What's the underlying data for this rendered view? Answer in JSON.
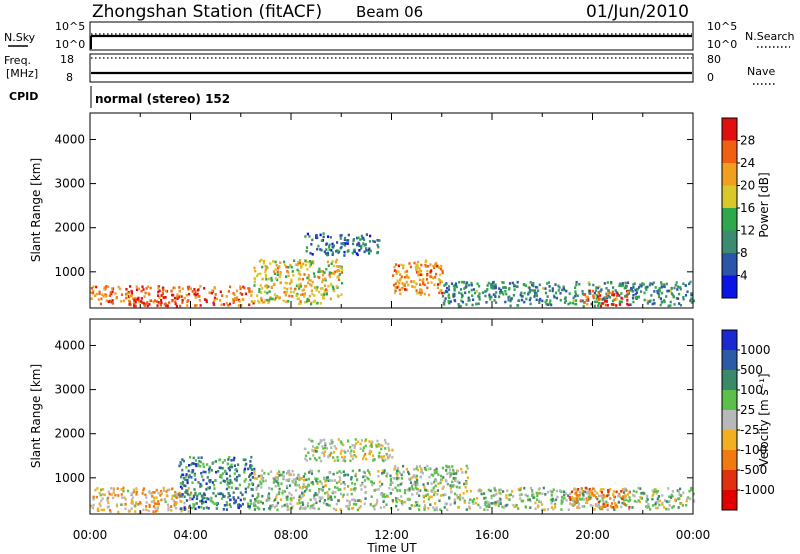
{
  "header": {
    "station": "Zhongshan Station (fitACF)",
    "beam": "Beam 06",
    "date": "01/Jun/2010"
  },
  "status_panels": {
    "nsky_label": "N.Sky",
    "nsky_ticks": [
      "10^5",
      "10^0"
    ],
    "nsearch_label": "N.Search",
    "nsearch_ticks": [
      "10^5",
      "10^0"
    ],
    "freq_label": "Freq.",
    "freq_unit": "[MHz]",
    "freq_ticks": [
      "18",
      "8"
    ],
    "nave_label": "Nave",
    "nave_ticks": [
      "80",
      "0"
    ],
    "cpid_label": "CPID",
    "cpid_text": "normal (stereo) 152"
  },
  "axes": {
    "ylabel": "Slant Range [km]",
    "xlabel": "Time UT",
    "y_ticks": [
      "1000",
      "2000",
      "3000",
      "4000"
    ],
    "x_ticks": [
      "00:00",
      "04:00",
      "08:00",
      "12:00",
      "16:00",
      "20:00",
      "00:00"
    ]
  },
  "power_scale": {
    "label": "Power [dB]",
    "ticks": [
      "4",
      "8",
      "12",
      "16",
      "20",
      "24",
      "28"
    ],
    "colors": [
      "#0a14e6",
      "#2a55a8",
      "#3c8a70",
      "#2ea84a",
      "#d8c82a",
      "#f0a020",
      "#f06010",
      "#e01010"
    ]
  },
  "velocity_scale": {
    "label": "Velocity [m s⁻¹]",
    "ticks": [
      "1000",
      "500",
      "100",
      "25",
      "-25",
      "-100",
      "-500",
      "-1000"
    ],
    "colors": [
      "#1a2ad0",
      "#2a5aa8",
      "#3a8a6a",
      "#5ac04a",
      "#b8b8b8",
      "#f0b020",
      "#f07a10",
      "#e03010",
      "#e00000"
    ]
  },
  "chart_data": [
    {
      "type": "heatmap",
      "title": "Power",
      "xlabel": "Time UT",
      "ylabel": "Slant Range [km]",
      "xlim": [
        "00:00",
        "24:00"
      ],
      "ylim": [
        180,
        4600
      ],
      "colorbar": {
        "label": "Power [dB]",
        "range": [
          0,
          30
        ]
      },
      "echo_regions": [
        {
          "t_start": 0.0,
          "t_end": 6.5,
          "range_bottom": 250,
          "range_top": 700,
          "value": 24
        },
        {
          "t_start": 1.5,
          "t_end": 3.5,
          "range_bottom": 250,
          "range_top": 450,
          "value": 28
        },
        {
          "t_start": 6.5,
          "t_end": 10.0,
          "range_bottom": 300,
          "range_top": 1300,
          "value": 18
        },
        {
          "t_start": 8.5,
          "t_end": 11.5,
          "range_bottom": 1400,
          "range_top": 1900,
          "value": 8
        },
        {
          "t_start": 12.0,
          "t_end": 14.0,
          "range_bottom": 500,
          "range_top": 1300,
          "value": 22
        },
        {
          "t_start": 14.0,
          "t_end": 24.0,
          "range_bottom": 250,
          "range_top": 800,
          "value": 10
        },
        {
          "t_start": 19.5,
          "t_end": 21.5,
          "range_bottom": 250,
          "range_top": 600,
          "value": 26
        }
      ]
    },
    {
      "type": "heatmap",
      "title": "Velocity",
      "xlabel": "Time UT",
      "ylabel": "Slant Range [km]",
      "xlim": [
        "00:00",
        "24:00"
      ],
      "ylim": [
        180,
        4600
      ],
      "colorbar": {
        "label": "Velocity [m s⁻¹]",
        "range": [
          -1000,
          1000
        ]
      },
      "echo_regions": [
        {
          "t_start": 0.0,
          "t_end": 4.0,
          "range_bottom": 250,
          "range_top": 800,
          "value": -200
        },
        {
          "t_start": 3.5,
          "t_end": 6.5,
          "range_bottom": 300,
          "range_top": 1500,
          "value": 500
        },
        {
          "t_start": 6.5,
          "t_end": 12.0,
          "range_bottom": 300,
          "range_top": 1200,
          "value": 150
        },
        {
          "t_start": 8.5,
          "t_end": 12.0,
          "range_bottom": 1400,
          "range_top": 1900,
          "value": 0
        },
        {
          "t_start": 12.0,
          "t_end": 15.0,
          "range_bottom": 300,
          "range_top": 1300,
          "value": 120
        },
        {
          "t_start": 15.0,
          "t_end": 24.0,
          "range_bottom": 300,
          "range_top": 800,
          "value": 100
        },
        {
          "t_start": 19.0,
          "t_end": 21.5,
          "range_bottom": 300,
          "range_top": 800,
          "value": -300
        }
      ]
    }
  ]
}
